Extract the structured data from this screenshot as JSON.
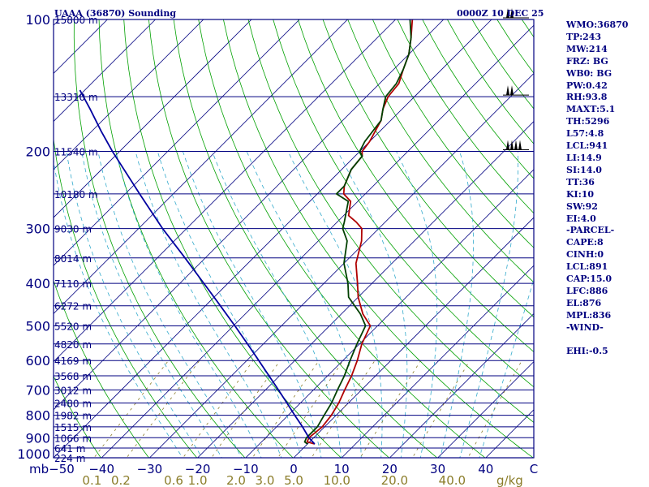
{
  "header": {
    "station_title": "UAAA (36870) Sounding",
    "time_label": "0000Z 10 DEC 25"
  },
  "colors": {
    "frame": "#000080",
    "isobar": "#000080",
    "isotherm": "#000080",
    "dry_adiabat": "#00a000",
    "moist_adiabat": "#33aacc",
    "mixing_ratio": "#8b7d2a",
    "temperature": "#b00000",
    "dewpoint": "#004000",
    "parcel": "#0000a0",
    "mixing_label": "#8b7d2a"
  },
  "chart_data": {
    "type": "line",
    "title": "UAAA (36870) Sounding",
    "subtitle": "0000Z 10 DEC 25",
    "xlabel": "C",
    "ylabel": "mb",
    "x_range": [
      -50,
      50
    ],
    "skew": true,
    "pressure_range": [
      1000,
      100
    ],
    "pressure_ticks": [
      {
        "p": 100,
        "label": "100"
      },
      {
        "p": 200,
        "label": "200"
      },
      {
        "p": 300,
        "label": "300"
      },
      {
        "p": 400,
        "label": "400"
      },
      {
        "p": 500,
        "label": "500"
      },
      {
        "p": 600,
        "label": "600"
      },
      {
        "p": 700,
        "label": "700"
      },
      {
        "p": 800,
        "label": "800"
      },
      {
        "p": 900,
        "label": "900"
      },
      {
        "p": 1000,
        "label": "1000"
      }
    ],
    "bottom_ticks": [
      {
        "t": -40,
        "label": "−40"
      },
      {
        "t": -30,
        "label": "−30"
      },
      {
        "t": -20,
        "label": "−20"
      },
      {
        "t": -10,
        "label": "−10"
      },
      {
        "t": 0,
        "label": "0"
      },
      {
        "t": 10,
        "label": "10"
      },
      {
        "t": 20,
        "label": "20"
      },
      {
        "t": 30,
        "label": "30"
      },
      {
        "t": 40,
        "label": "40"
      }
    ],
    "bottom_left_label": "mb−50",
    "mixing_labels": [
      {
        "t": -42,
        "label": "0.1"
      },
      {
        "t": -36,
        "label": "0.2"
      },
      {
        "t": -25,
        "label": "0.6"
      },
      {
        "t": -20,
        "label": "1.0"
      },
      {
        "t": -12,
        "label": "2.0"
      },
      {
        "t": -6,
        "label": "3.0"
      },
      {
        "t": 0,
        "label": "5.0"
      },
      {
        "t": 9,
        "label": "10.0"
      },
      {
        "t": 21,
        "label": "20.0"
      },
      {
        "t": 33,
        "label": "40.0"
      },
      {
        "t": 45,
        "label": "g/kg"
      }
    ],
    "height_labels": [
      {
        "p": 100,
        "label": "15800 m"
      },
      {
        "p": 150,
        "label": "13310 m"
      },
      {
        "p": 200,
        "label": "11540 m"
      },
      {
        "p": 250,
        "label": "10180 m"
      },
      {
        "p": 300,
        "label": "9030 m"
      },
      {
        "p": 350,
        "label": "8014 m"
      },
      {
        "p": 400,
        "label": "7110 m"
      },
      {
        "p": 450,
        "label": "6272 m"
      },
      {
        "p": 500,
        "label": "5520 m"
      },
      {
        "p": 550,
        "label": "4820 m"
      },
      {
        "p": 600,
        "label": "4169 m"
      },
      {
        "p": 650,
        "label": "3568 m"
      },
      {
        "p": 700,
        "label": "3012 m"
      },
      {
        "p": 750,
        "label": "2480 m"
      },
      {
        "p": 800,
        "label": "1982 m"
      },
      {
        "p": 850,
        "label": "1515 m"
      },
      {
        "p": 900,
        "label": "1066 m"
      },
      {
        "p": 950,
        "label": "641 m"
      },
      {
        "p": 1000,
        "label": "224 m"
      }
    ],
    "series": [
      {
        "name": "temperature",
        "points": [
          [
            930,
            1.5
          ],
          [
            920,
            -0.5
          ],
          [
            900,
            -1.0
          ],
          [
            850,
            -0.5
          ],
          [
            800,
            -1.0
          ],
          [
            750,
            -2.0
          ],
          [
            700,
            -3.5
          ],
          [
            650,
            -5.0
          ],
          [
            600,
            -7.0
          ],
          [
            550,
            -9.5
          ],
          [
            500,
            -11.5
          ],
          [
            470,
            -15.5
          ],
          [
            430,
            -20.0
          ],
          [
            400,
            -23.0
          ],
          [
            360,
            -27.5
          ],
          [
            320,
            -31.0
          ],
          [
            300,
            -33.5
          ],
          [
            290,
            -36.0
          ],
          [
            280,
            -39.0
          ],
          [
            260,
            -41.5
          ],
          [
            250,
            -44.5
          ],
          [
            240,
            -46.0
          ],
          [
            220,
            -48.0
          ],
          [
            205,
            -48.5
          ],
          [
            200,
            -49.5
          ],
          [
            190,
            -50.0
          ],
          [
            170,
            -52.0
          ],
          [
            160,
            -54.0
          ],
          [
            150,
            -55.5
          ],
          [
            140,
            -56.0
          ],
          [
            130,
            -58.0
          ],
          [
            120,
            -60.0
          ],
          [
            110,
            -63.0
          ],
          [
            100,
            -66.5
          ]
        ]
      },
      {
        "name": "dewpoint",
        "points": [
          [
            930,
            0.0
          ],
          [
            920,
            -1.0
          ],
          [
            900,
            -1.5
          ],
          [
            850,
            -1.5
          ],
          [
            800,
            -2.5
          ],
          [
            750,
            -3.5
          ],
          [
            700,
            -5.0
          ],
          [
            650,
            -6.5
          ],
          [
            600,
            -8.5
          ],
          [
            550,
            -10.5
          ],
          [
            500,
            -12.5
          ],
          [
            470,
            -16.0
          ],
          [
            430,
            -22.0
          ],
          [
            400,
            -25.0
          ],
          [
            360,
            -30.0
          ],
          [
            320,
            -34.0
          ],
          [
            300,
            -37.5
          ],
          [
            290,
            -38.5
          ],
          [
            260,
            -42.0
          ],
          [
            250,
            -46.0
          ],
          [
            240,
            -46.0
          ],
          [
            220,
            -48.0
          ],
          [
            205,
            -48.5
          ],
          [
            200,
            -50.0
          ],
          [
            190,
            -51.0
          ],
          [
            170,
            -52.0
          ],
          [
            160,
            -54.0
          ],
          [
            150,
            -56.0
          ],
          [
            140,
            -56.5
          ],
          [
            130,
            -58.0
          ],
          [
            120,
            -60.0
          ],
          [
            110,
            -63.0
          ],
          [
            100,
            -67.0
          ]
        ]
      },
      {
        "name": "parcel",
        "points": [
          [
            930,
            1.5
          ],
          [
            900,
            -1.0
          ],
          [
            850,
            -4.6
          ],
          [
            800,
            -8.6
          ],
          [
            750,
            -12.8
          ],
          [
            700,
            -17.3
          ],
          [
            650,
            -22.2
          ],
          [
            600,
            -27.5
          ],
          [
            550,
            -33.3
          ],
          [
            500,
            -39.7
          ],
          [
            450,
            -46.9
          ],
          [
            400,
            -55.0
          ],
          [
            350,
            -64.2
          ],
          [
            300,
            -75.0
          ],
          [
            250,
            -87.0
          ],
          [
            200,
            -101.5
          ],
          [
            180,
            -108.0
          ],
          [
            160,
            -115.0
          ],
          [
            145,
            -121.0
          ]
        ]
      }
    ],
    "winds": [
      {
        "p": 100,
        "label": "wind barb"
      },
      {
        "p": 150,
        "label": "wind barb"
      },
      {
        "p": 200,
        "label": "wind barb"
      }
    ]
  },
  "indices": [
    "WMO:36870",
    "TP:243",
    "MW:214",
    "FRZ: BG",
    "WB0: BG",
    "PW:0.42",
    "RH:93.8",
    "MAXT:5.1",
    "TH:5296",
    "L57:4.8",
    "LCL:941",
    "LI:14.9",
    "SI:14.0",
    "TT:36",
    "KI:10",
    "SW:92",
    "EI:4.0",
    "-PARCEL-",
    "CAPE:8",
    "CINH:0",
    "LCL:891",
    "CAP:15.0",
    "LFC:886",
    "EL:876",
    "MPL:836",
    "-WIND-",
    "",
    "EHI:-0.5"
  ]
}
